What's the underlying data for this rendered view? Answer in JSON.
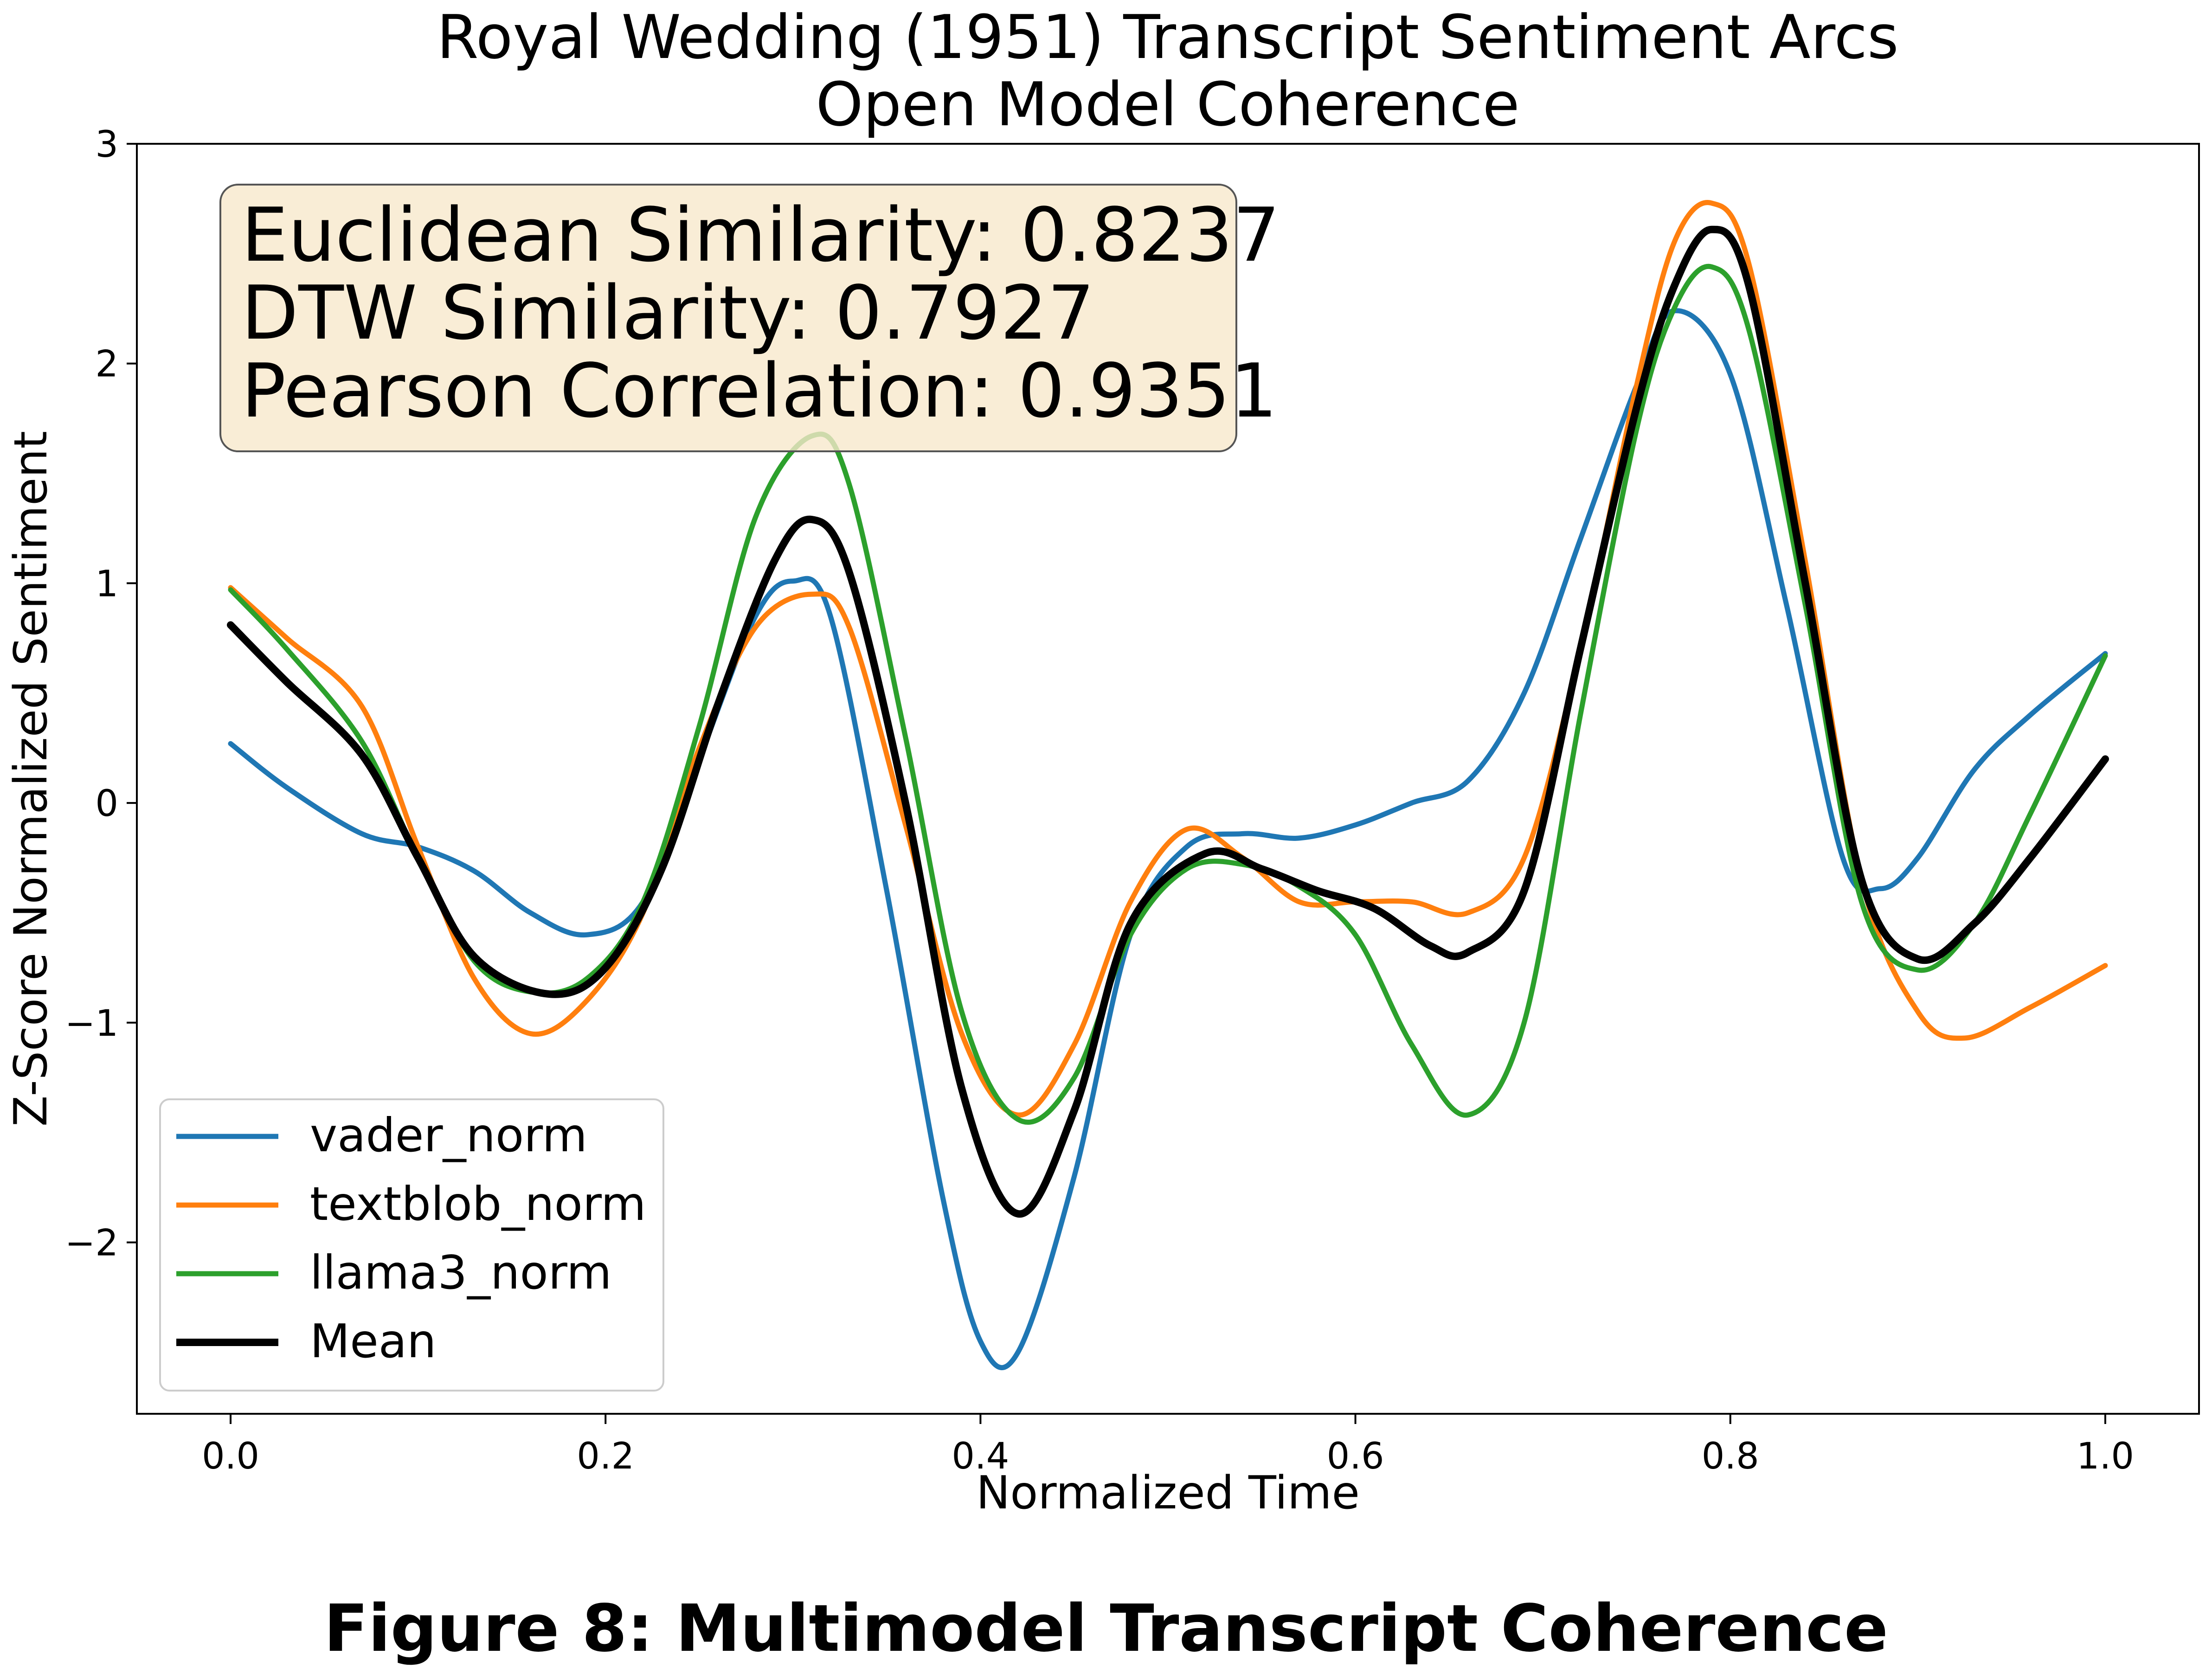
{
  "chart_data": {
    "type": "line",
    "title": "Royal Wedding (1951) Transcript Sentiment Arcs",
    "subtitle": "Open Model Coherence",
    "xlabel": "Normalized Time",
    "ylabel": "Z-Score Normalized Sentiment",
    "xlim": [
      -0.05,
      1.05
    ],
    "ylim": [
      -2.78,
      3.0
    ],
    "xticks": [
      0.0,
      0.2,
      0.4,
      0.6,
      0.8,
      1.0
    ],
    "xtick_labels": [
      "0.0",
      "0.2",
      "0.4",
      "0.6",
      "0.8",
      "1.0"
    ],
    "yticks": [
      -2,
      -1,
      0,
      1,
      2,
      3
    ],
    "ytick_labels": [
      "−2",
      "−1",
      "0",
      "1",
      "2",
      "3"
    ],
    "grid": false,
    "legend_position": "lower-left",
    "annotation_lines": [
      "Euclidean Similarity: 0.8237",
      "DTW Similarity: 0.7927",
      "Pearson Correlation: 0.9351"
    ],
    "series": [
      {
        "name": "vader_norm",
        "color": "#1f77b4",
        "x": [
          0.0,
          0.03,
          0.07,
          0.1,
          0.13,
          0.16,
          0.19,
          0.22,
          0.25,
          0.28,
          0.3,
          0.32,
          0.35,
          0.38,
          0.4,
          0.42,
          0.45,
          0.48,
          0.51,
          0.54,
          0.57,
          0.6,
          0.63,
          0.66,
          0.69,
          0.72,
          0.75,
          0.77,
          0.8,
          0.83,
          0.86,
          0.88,
          0.9,
          0.93,
          0.96,
          1.0
        ],
        "y": [
          0.27,
          0.07,
          -0.14,
          -0.2,
          -0.31,
          -0.5,
          -0.6,
          -0.45,
          0.2,
          0.85,
          1.01,
          0.85,
          -0.4,
          -1.8,
          -2.45,
          -2.5,
          -1.7,
          -0.6,
          -0.2,
          -0.14,
          -0.16,
          -0.1,
          0.0,
          0.1,
          0.5,
          1.2,
          1.9,
          2.24,
          1.95,
          0.9,
          -0.25,
          -0.39,
          -0.25,
          0.15,
          0.4,
          0.68
        ]
      },
      {
        "name": "textblob_norm",
        "color": "#ff7f0e",
        "x": [
          0.0,
          0.03,
          0.07,
          0.1,
          0.13,
          0.16,
          0.19,
          0.22,
          0.25,
          0.28,
          0.31,
          0.33,
          0.36,
          0.39,
          0.42,
          0.45,
          0.48,
          0.51,
          0.54,
          0.57,
          0.6,
          0.63,
          0.66,
          0.69,
          0.72,
          0.75,
          0.77,
          0.79,
          0.81,
          0.84,
          0.87,
          0.9,
          0.925,
          0.96,
          1.0
        ],
        "y": [
          0.98,
          0.75,
          0.44,
          -0.2,
          -0.8,
          -1.05,
          -0.9,
          -0.5,
          0.25,
          0.8,
          0.95,
          0.8,
          -0.1,
          -1.05,
          -1.42,
          -1.1,
          -0.45,
          -0.12,
          -0.25,
          -0.45,
          -0.45,
          -0.45,
          -0.5,
          -0.25,
          0.7,
          1.9,
          2.55,
          2.73,
          2.45,
          1.1,
          -0.35,
          -0.95,
          -1.07,
          -0.93,
          -0.74
        ]
      },
      {
        "name": "llama3_norm",
        "color": "#2ca02c",
        "x": [
          0.0,
          0.03,
          0.07,
          0.1,
          0.13,
          0.16,
          0.19,
          0.22,
          0.25,
          0.28,
          0.31,
          0.33,
          0.36,
          0.39,
          0.42,
          0.45,
          0.48,
          0.51,
          0.54,
          0.57,
          0.6,
          0.63,
          0.66,
          0.69,
          0.72,
          0.75,
          0.77,
          0.79,
          0.81,
          0.84,
          0.87,
          0.9,
          0.93,
          0.96,
          1.0
        ],
        "y": [
          0.97,
          0.7,
          0.28,
          -0.25,
          -0.72,
          -0.86,
          -0.8,
          -0.45,
          0.35,
          1.3,
          1.67,
          1.45,
          0.3,
          -0.95,
          -1.44,
          -1.25,
          -0.6,
          -0.3,
          -0.28,
          -0.38,
          -0.6,
          -1.1,
          -1.42,
          -1.0,
          0.4,
          1.7,
          2.25,
          2.44,
          2.15,
          0.9,
          -0.45,
          -0.76,
          -0.55,
          -0.05,
          0.67
        ]
      },
      {
        "name": "Mean",
        "color": "#000000",
        "x": [
          0.0,
          0.03,
          0.07,
          0.1,
          0.13,
          0.17,
          0.2,
          0.23,
          0.26,
          0.29,
          0.31,
          0.33,
          0.36,
          0.39,
          0.42,
          0.45,
          0.48,
          0.52,
          0.55,
          0.58,
          0.61,
          0.64,
          0.66,
          0.69,
          0.72,
          0.75,
          0.77,
          0.79,
          0.81,
          0.84,
          0.87,
          0.9,
          0.93,
          0.96,
          1.0
        ],
        "y": [
          0.81,
          0.55,
          0.22,
          -0.25,
          -0.7,
          -0.87,
          -0.75,
          -0.3,
          0.45,
          1.1,
          1.29,
          1.05,
          0.0,
          -1.3,
          -1.87,
          -1.4,
          -0.55,
          -0.23,
          -0.3,
          -0.4,
          -0.48,
          -0.65,
          -0.68,
          -0.4,
          0.7,
          1.8,
          2.35,
          2.61,
          2.35,
          1.0,
          -0.35,
          -0.71,
          -0.55,
          -0.25,
          0.2
        ]
      }
    ]
  },
  "figure_caption": "Figure 8: Multimodel Transcript Coherence"
}
